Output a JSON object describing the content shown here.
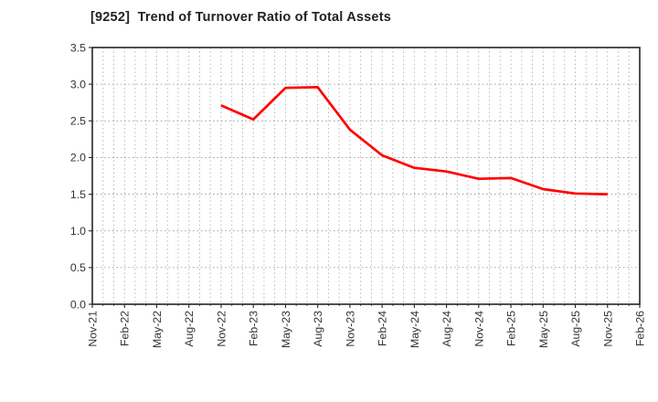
{
  "header": {
    "title": "[9252]  Trend of Turnover Ratio of Total Assets"
  },
  "chart_data": {
    "type": "line",
    "title": "[9252]  Trend of Turnover Ratio of Total Assets",
    "xlabel": "",
    "ylabel": "",
    "ylim": [
      0.0,
      3.5
    ],
    "y_ticks": [
      0.0,
      0.5,
      1.0,
      1.5,
      2.0,
      2.5,
      3.0,
      3.5
    ],
    "y_tick_labels": [
      "0.0",
      "0.5",
      "1.0",
      "1.5",
      "2.0",
      "2.5",
      "3.0",
      "3.5"
    ],
    "x_tick_labels": [
      "Nov-21",
      "Feb-22",
      "May-22",
      "Aug-22",
      "Nov-22",
      "Feb-23",
      "May-23",
      "Aug-23",
      "Nov-23",
      "Feb-24",
      "May-24",
      "Aug-24",
      "Nov-24",
      "Feb-25",
      "May-25",
      "Aug-25",
      "Nov-25",
      "Feb-26"
    ],
    "grid": true,
    "legend_visible": false,
    "series": [
      {
        "name": "Turnover Ratio of Total Assets",
        "color": "#ff0000",
        "points": [
          {
            "x": "Nov-22",
            "y": 2.71
          },
          {
            "x": "Feb-23",
            "y": 2.52
          },
          {
            "x": "May-23",
            "y": 2.95
          },
          {
            "x": "Aug-23",
            "y": 2.96
          },
          {
            "x": "Nov-23",
            "y": 2.38
          },
          {
            "x": "Feb-24",
            "y": 2.03
          },
          {
            "x": "May-24",
            "y": 1.86
          },
          {
            "x": "Aug-24",
            "y": 1.81
          },
          {
            "x": "Nov-24",
            "y": 1.71
          },
          {
            "x": "Feb-25",
            "y": 1.72
          },
          {
            "x": "May-25",
            "y": 1.57
          },
          {
            "x": "Aug-25",
            "y": 1.51
          },
          {
            "x": "Nov-25",
            "y": 1.5
          }
        ]
      }
    ],
    "colors": {
      "line": "#ff0000",
      "grid_major": "#999999",
      "grid_minor": "#b3b3b3",
      "axis_border": "#262626",
      "tick_text": "#333333",
      "background": "#ffffff"
    }
  }
}
